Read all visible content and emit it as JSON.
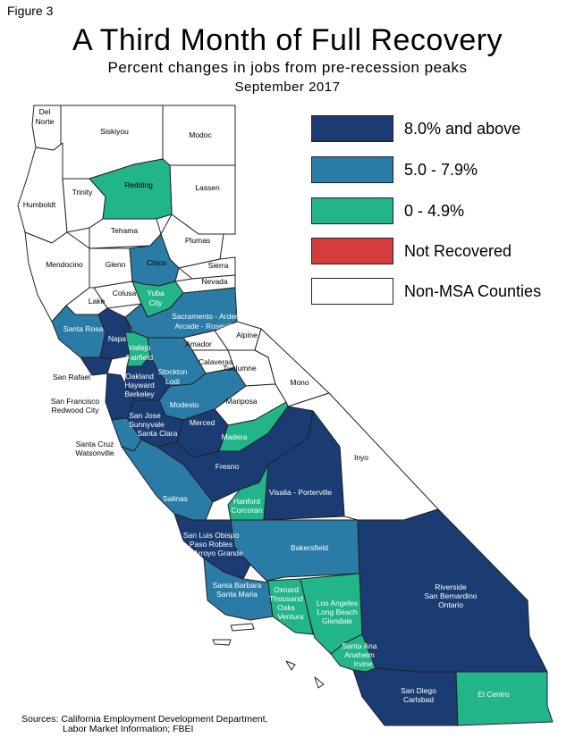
{
  "figure_label": "Figure 3",
  "title": "A Third Month of Full Recovery",
  "subtitle": "Percent changes in jobs from pre-recession peaks",
  "date": "September 2017",
  "colors": {
    "dark_navy": "#1a3c73",
    "mid_blue": "#2a7ba6",
    "green": "#23b58a",
    "red": "#d63c3c",
    "white": "#ffffff",
    "border": "#222222"
  },
  "legend": [
    {
      "label": "8.0% and above",
      "color": "#1a3c73"
    },
    {
      "label": "5.0 - 7.9%",
      "color": "#2a7ba6"
    },
    {
      "label": "0 - 4.9%",
      "color": "#23b58a"
    },
    {
      "label": "Not Recovered",
      "color": "#d63c3c"
    },
    {
      "label": "Non-MSA Counties",
      "color": "#ffffff"
    }
  ],
  "regions": [
    {
      "name": "Del Norte",
      "category": "Non-MSA Counties"
    },
    {
      "name": "Siskiyou",
      "category": "Non-MSA Counties"
    },
    {
      "name": "Modoc",
      "category": "Non-MSA Counties"
    },
    {
      "name": "Humboldt",
      "category": "Non-MSA Counties"
    },
    {
      "name": "Trinity",
      "category": "Non-MSA Counties"
    },
    {
      "name": "Redding",
      "category": "0 - 4.9%"
    },
    {
      "name": "Lassen",
      "category": "Non-MSA Counties"
    },
    {
      "name": "Tehama",
      "category": "Non-MSA Counties"
    },
    {
      "name": "Plumas",
      "category": "Non-MSA Counties"
    },
    {
      "name": "Mendocino",
      "category": "Non-MSA Counties"
    },
    {
      "name": "Glenn",
      "category": "Non-MSA Counties"
    },
    {
      "name": "Chico",
      "category": "5.0 - 7.9%"
    },
    {
      "name": "Sierra",
      "category": "Non-MSA Counties"
    },
    {
      "name": "Nevada",
      "category": "Non-MSA Counties"
    },
    {
      "name": "Colusa",
      "category": "Non-MSA Counties"
    },
    {
      "name": "Yuba City",
      "category": "0 - 4.9%"
    },
    {
      "name": "Lake",
      "category": "Non-MSA Counties"
    },
    {
      "name": "Sacramento - Arden Arcade - Roseville",
      "category": "5.0 - 7.9%"
    },
    {
      "name": "Santa Rosa",
      "category": "5.0 - 7.9%"
    },
    {
      "name": "Napa",
      "category": "8.0% and above"
    },
    {
      "name": "Vallejo Fairfield",
      "category": "0 - 4.9%"
    },
    {
      "name": "Alpine",
      "category": "Non-MSA Counties"
    },
    {
      "name": "Amador",
      "category": "Non-MSA Counties"
    },
    {
      "name": "Calaveras",
      "category": "Non-MSA Counties"
    },
    {
      "name": "San Rafael",
      "category": "8.0% and above"
    },
    {
      "name": "Stockton Lodi",
      "category": "5.0 - 7.9%"
    },
    {
      "name": "Tuolumne",
      "category": "Non-MSA Counties"
    },
    {
      "name": "Oakland Hayward Berkeley",
      "category": "8.0% and above"
    },
    {
      "name": "San Francisco Redwood City",
      "category": "8.0% and above"
    },
    {
      "name": "Mono",
      "category": "Non-MSA Counties"
    },
    {
      "name": "Modesto",
      "category": "5.0 - 7.9%"
    },
    {
      "name": "Mariposa",
      "category": "Non-MSA Counties"
    },
    {
      "name": "San Jose Sunnyvale Santa Clara",
      "category": "8.0% and above"
    },
    {
      "name": "Merced",
      "category": "8.0% and above"
    },
    {
      "name": "Madera",
      "category": "0 - 4.9%"
    },
    {
      "name": "Santa Cruz Watsonville",
      "category": "5.0 - 7.9%"
    },
    {
      "name": "Inyo",
      "category": "Non-MSA Counties"
    },
    {
      "name": "Fresno",
      "category": "8.0% and above"
    },
    {
      "name": "Salinas",
      "category": "5.0 - 7.9%"
    },
    {
      "name": "Hanford Corcoran",
      "category": "0 - 4.9%"
    },
    {
      "name": "Visalia - Porterville",
      "category": "8.0% and above"
    },
    {
      "name": "San Luis Obispo Paso Robles Arroyo Grande",
      "category": "8.0% and above"
    },
    {
      "name": "Bakersfield",
      "category": "5.0 - 7.9%"
    },
    {
      "name": "Riverside San Bernardino Ontario",
      "category": "8.0% and above"
    },
    {
      "name": "Santa Barbara Santa Maria",
      "category": "5.0 - 7.9%"
    },
    {
      "name": "Oxnard Thousand Oaks Ventura",
      "category": "0 - 4.9%"
    },
    {
      "name": "Los Angeles Long Beach Glendale",
      "category": "0 - 4.9%"
    },
    {
      "name": "Santa Ana Anaheim Irvine",
      "category": "0 - 4.9%"
    },
    {
      "name": "San Diego Carlsbad",
      "category": "8.0% and above"
    },
    {
      "name": "El Centro",
      "category": "0 - 4.9%"
    }
  ],
  "map_labels": {
    "del_norte_1": "Del",
    "del_norte_2": "Norte",
    "siskiyou": "Siskiyou",
    "modoc": "Modoc",
    "humboldt": "Humboldt",
    "trinity": "Trinity",
    "redding": "Redding",
    "lassen": "Lassen",
    "tehama": "Tehama",
    "plumas": "Plumas",
    "mendocino": "Mendocino",
    "glenn": "Glenn",
    "chico": "Chico",
    "sierra": "Sierra",
    "nevada": "Nevada",
    "colusa": "Colusa",
    "yuba_1": "Yuba",
    "yuba_2": "City",
    "lake": "Lake",
    "sacramento_1": "Sacramento - Arden",
    "sacramento_2": "Arcade - Roseville",
    "santa_rosa": "Santa Rosa",
    "napa": "Napa",
    "vallejo_1": "Vallejo",
    "vallejo_2": "Fairfield",
    "alpine": "Alpine",
    "amador": "Amador",
    "calaveras": "Calaveras",
    "san_rafael": "San Rafael",
    "stockton_1": "Stockton",
    "stockton_2": "Lodi",
    "tuolumne": "Tuolumne",
    "oakland_1": "Oakland",
    "oakland_2": "Hayward",
    "oakland_3": "Berkeley",
    "sf_1": "San Francisco",
    "sf_2": "Redwood City",
    "mono": "Mono",
    "modesto": "Modesto",
    "mariposa": "Mariposa",
    "sj_1": "San Jose",
    "sj_2": "Sunnyvale",
    "sj_3": "Santa Clara",
    "merced": "Merced",
    "madera": "Madera",
    "santa_cruz_1": "Santa Cruz",
    "santa_cruz_2": "Watsonville",
    "inyo": "Inyo",
    "fresno": "Fresno",
    "salinas": "Salinas",
    "hanford_1": "Hanford",
    "hanford_2": "Corcoran",
    "visalia": "Visalia - Porterville",
    "slo_1": "San Luis Obispo",
    "slo_2": "Paso Robles",
    "slo_3": "Arroyo Grande",
    "bakersfield": "Bakersfield",
    "riverside_1": "Riverside",
    "riverside_2": "San Bernardino",
    "riverside_3": "Ontario",
    "sb_1": "Santa Barbara",
    "sb_2": "Santa Maria",
    "oxnard_1": "Oxnard",
    "oxnard_2": "Thousand",
    "oxnard_3": "Oaks",
    "oxnard_4": "Ventura",
    "la_1": "Los Angeles",
    "la_2": "Long Beach",
    "la_3": "Glendale",
    "sa_1": "Santa Ana",
    "sa_2": "Anaheim",
    "sa_3": "Irvine",
    "sd_1": "San Diego",
    "sd_2": "Carlsbad",
    "el_centro": "El Centro"
  },
  "sources_line1": "Sources: California Employment Development Department,",
  "sources_line2": "Labor Market Information; FBEI"
}
